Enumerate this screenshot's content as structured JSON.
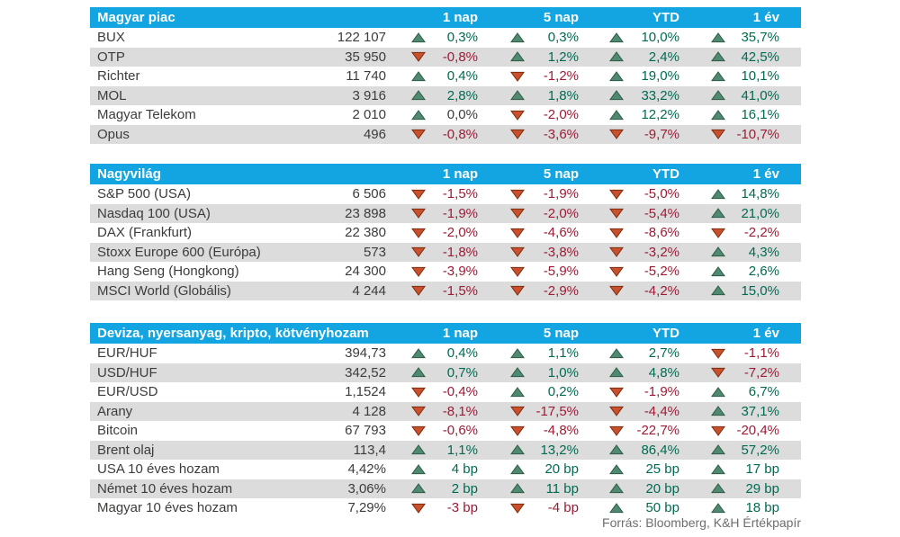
{
  "colors": {
    "header_bg": "#12A5E1",
    "header_text": "#FFFFFF",
    "stripe": "#DCDCDC",
    "text": "#3C3C3B",
    "positive": "#006B52",
    "negative": "#9C1C35",
    "up_triangle_fill": "#4F8A70",
    "up_triangle_stroke": "#2E5B47",
    "down_triangle_fill": "#C8502D",
    "down_triangle_stroke": "#7C2B10",
    "footer_text": "#6E6E6D"
  },
  "footer": "Forrás: Bloomberg, K&H Értékpapír",
  "chart_data": [
    {
      "type": "table",
      "title": "Magyar piac",
      "columns": [
        "1 nap",
        "5 nap",
        "YTD",
        "1 év"
      ],
      "rows": [
        {
          "name": "BUX",
          "value": "122 107",
          "changes": [
            {
              "dir": "up",
              "text": "0,3%",
              "tone": "pos"
            },
            {
              "dir": "up",
              "text": "0,3%",
              "tone": "pos"
            },
            {
              "dir": "up",
              "text": "10,0%",
              "tone": "pos"
            },
            {
              "dir": "up",
              "text": "35,7%",
              "tone": "pos"
            }
          ]
        },
        {
          "name": "OTP",
          "value": "35 950",
          "changes": [
            {
              "dir": "down",
              "text": "-0,8%",
              "tone": "neg"
            },
            {
              "dir": "up",
              "text": "1,2%",
              "tone": "pos"
            },
            {
              "dir": "up",
              "text": "2,4%",
              "tone": "pos"
            },
            {
              "dir": "up",
              "text": "42,5%",
              "tone": "pos"
            }
          ]
        },
        {
          "name": "Richter",
          "value": "11 740",
          "changes": [
            {
              "dir": "up",
              "text": "0,4%",
              "tone": "pos"
            },
            {
              "dir": "down",
              "text": "-1,2%",
              "tone": "neg"
            },
            {
              "dir": "up",
              "text": "19,0%",
              "tone": "pos"
            },
            {
              "dir": "up",
              "text": "10,1%",
              "tone": "pos"
            }
          ]
        },
        {
          "name": "MOL",
          "value": "3 916",
          "changes": [
            {
              "dir": "up",
              "text": "2,8%",
              "tone": "pos"
            },
            {
              "dir": "up",
              "text": "1,8%",
              "tone": "pos"
            },
            {
              "dir": "up",
              "text": "33,2%",
              "tone": "pos"
            },
            {
              "dir": "up",
              "text": "41,0%",
              "tone": "pos"
            }
          ]
        },
        {
          "name": "Magyar Telekom",
          "value": "2 010",
          "changes": [
            {
              "dir": "up",
              "text": "0,0%",
              "tone": "flat"
            },
            {
              "dir": "down",
              "text": "-2,0%",
              "tone": "neg"
            },
            {
              "dir": "up",
              "text": "12,2%",
              "tone": "pos"
            },
            {
              "dir": "up",
              "text": "16,1%",
              "tone": "pos"
            }
          ]
        },
        {
          "name": "Opus",
          "value": "496",
          "changes": [
            {
              "dir": "down",
              "text": "-0,8%",
              "tone": "neg"
            },
            {
              "dir": "down",
              "text": "-3,6%",
              "tone": "neg"
            },
            {
              "dir": "down",
              "text": "-9,7%",
              "tone": "neg"
            },
            {
              "dir": "down",
              "text": "-10,7%",
              "tone": "neg"
            }
          ]
        }
      ]
    },
    {
      "type": "table",
      "title": "Nagyvilág",
      "columns": [
        "1 nap",
        "5 nap",
        "YTD",
        "1 év"
      ],
      "rows": [
        {
          "name": "S&P 500 (USA)",
          "value": "6 506",
          "changes": [
            {
              "dir": "down",
              "text": "-1,5%",
              "tone": "neg"
            },
            {
              "dir": "down",
              "text": "-1,9%",
              "tone": "neg"
            },
            {
              "dir": "down",
              "text": "-5,0%",
              "tone": "neg"
            },
            {
              "dir": "up",
              "text": "14,8%",
              "tone": "pos"
            }
          ]
        },
        {
          "name": "Nasdaq 100 (USA)",
          "value": "23 898",
          "changes": [
            {
              "dir": "down",
              "text": "-1,9%",
              "tone": "neg"
            },
            {
              "dir": "down",
              "text": "-2,0%",
              "tone": "neg"
            },
            {
              "dir": "down",
              "text": "-5,4%",
              "tone": "neg"
            },
            {
              "dir": "up",
              "text": "21,0%",
              "tone": "pos"
            }
          ]
        },
        {
          "name": "DAX (Frankfurt)",
          "value": "22 380",
          "changes": [
            {
              "dir": "down",
              "text": "-2,0%",
              "tone": "neg"
            },
            {
              "dir": "down",
              "text": "-4,6%",
              "tone": "neg"
            },
            {
              "dir": "down",
              "text": "-8,6%",
              "tone": "neg"
            },
            {
              "dir": "down",
              "text": "-2,2%",
              "tone": "neg"
            }
          ]
        },
        {
          "name": "Stoxx Europe 600 (Európa)",
          "value": "573",
          "changes": [
            {
              "dir": "down",
              "text": "-1,8%",
              "tone": "neg"
            },
            {
              "dir": "down",
              "text": "-3,8%",
              "tone": "neg"
            },
            {
              "dir": "down",
              "text": "-3,2%",
              "tone": "neg"
            },
            {
              "dir": "up",
              "text": "4,3%",
              "tone": "pos"
            }
          ]
        },
        {
          "name": "Hang Seng (Hongkong)",
          "value": "24 300",
          "changes": [
            {
              "dir": "down",
              "text": "-3,9%",
              "tone": "neg"
            },
            {
              "dir": "down",
              "text": "-5,9%",
              "tone": "neg"
            },
            {
              "dir": "down",
              "text": "-5,2%",
              "tone": "neg"
            },
            {
              "dir": "up",
              "text": "2,6%",
              "tone": "pos"
            }
          ]
        },
        {
          "name": "MSCI World (Globális)",
          "value": "4 244",
          "changes": [
            {
              "dir": "down",
              "text": "-1,5%",
              "tone": "neg"
            },
            {
              "dir": "down",
              "text": "-2,9%",
              "tone": "neg"
            },
            {
              "dir": "down",
              "text": "-4,2%",
              "tone": "neg"
            },
            {
              "dir": "up",
              "text": "15,0%",
              "tone": "pos"
            }
          ]
        }
      ]
    },
    {
      "type": "table",
      "title": "Deviza, nyersanyag, kripto, kötvényhozam",
      "columns": [
        "1 nap",
        "5 nap",
        "YTD",
        "1 év"
      ],
      "rows": [
        {
          "name": "EUR/HUF",
          "value": "394,73",
          "changes": [
            {
              "dir": "up",
              "text": "0,4%",
              "tone": "pos"
            },
            {
              "dir": "up",
              "text": "1,1%",
              "tone": "pos"
            },
            {
              "dir": "up",
              "text": "2,7%",
              "tone": "pos"
            },
            {
              "dir": "down",
              "text": "-1,1%",
              "tone": "neg"
            }
          ]
        },
        {
          "name": "USD/HUF",
          "value": "342,52",
          "changes": [
            {
              "dir": "up",
              "text": "0,7%",
              "tone": "pos"
            },
            {
              "dir": "up",
              "text": "1,0%",
              "tone": "pos"
            },
            {
              "dir": "up",
              "text": "4,8%",
              "tone": "pos"
            },
            {
              "dir": "down",
              "text": "-7,2%",
              "tone": "neg"
            }
          ]
        },
        {
          "name": "EUR/USD",
          "value": "1,1524",
          "changes": [
            {
              "dir": "down",
              "text": "-0,4%",
              "tone": "neg"
            },
            {
              "dir": "up",
              "text": "0,2%",
              "tone": "pos"
            },
            {
              "dir": "down",
              "text": "-1,9%",
              "tone": "neg"
            },
            {
              "dir": "up",
              "text": "6,7%",
              "tone": "pos"
            }
          ]
        },
        {
          "name": "Arany",
          "value": "4 128",
          "changes": [
            {
              "dir": "down",
              "text": "-8,1%",
              "tone": "neg"
            },
            {
              "dir": "down",
              "text": "-17,5%",
              "tone": "neg"
            },
            {
              "dir": "down",
              "text": "-4,4%",
              "tone": "neg"
            },
            {
              "dir": "up",
              "text": "37,1%",
              "tone": "pos"
            }
          ]
        },
        {
          "name": "Bitcoin",
          "value": "67 793",
          "changes": [
            {
              "dir": "down",
              "text": "-0,6%",
              "tone": "neg"
            },
            {
              "dir": "down",
              "text": "-4,8%",
              "tone": "neg"
            },
            {
              "dir": "down",
              "text": "-22,7%",
              "tone": "neg"
            },
            {
              "dir": "down",
              "text": "-20,4%",
              "tone": "neg"
            }
          ]
        },
        {
          "name": "Brent olaj",
          "value": "113,4",
          "changes": [
            {
              "dir": "up",
              "text": "1,1%",
              "tone": "pos"
            },
            {
              "dir": "up",
              "text": "13,2%",
              "tone": "pos"
            },
            {
              "dir": "up",
              "text": "86,4%",
              "tone": "pos"
            },
            {
              "dir": "up",
              "text": "57,2%",
              "tone": "pos"
            }
          ]
        },
        {
          "name": "USA 10 éves hozam",
          "value": "4,42%",
          "changes": [
            {
              "dir": "up",
              "text": "4 bp",
              "tone": "pos"
            },
            {
              "dir": "up",
              "text": "20 bp",
              "tone": "pos"
            },
            {
              "dir": "up",
              "text": "25 bp",
              "tone": "pos"
            },
            {
              "dir": "up",
              "text": "17 bp",
              "tone": "pos"
            }
          ]
        },
        {
          "name": "Német 10 éves hozam",
          "value": "3,06%",
          "changes": [
            {
              "dir": "up",
              "text": "2 bp",
              "tone": "pos"
            },
            {
              "dir": "up",
              "text": "11 bp",
              "tone": "pos"
            },
            {
              "dir": "up",
              "text": "20 bp",
              "tone": "pos"
            },
            {
              "dir": "up",
              "text": "29 bp",
              "tone": "pos"
            }
          ]
        },
        {
          "name": "Magyar 10 éves hozam",
          "value": "7,29%",
          "changes": [
            {
              "dir": "down",
              "text": "-3 bp",
              "tone": "neg"
            },
            {
              "dir": "down",
              "text": "-4 bp",
              "tone": "neg"
            },
            {
              "dir": "up",
              "text": "50 bp",
              "tone": "pos"
            },
            {
              "dir": "up",
              "text": "18 bp",
              "tone": "pos"
            }
          ]
        }
      ]
    }
  ]
}
